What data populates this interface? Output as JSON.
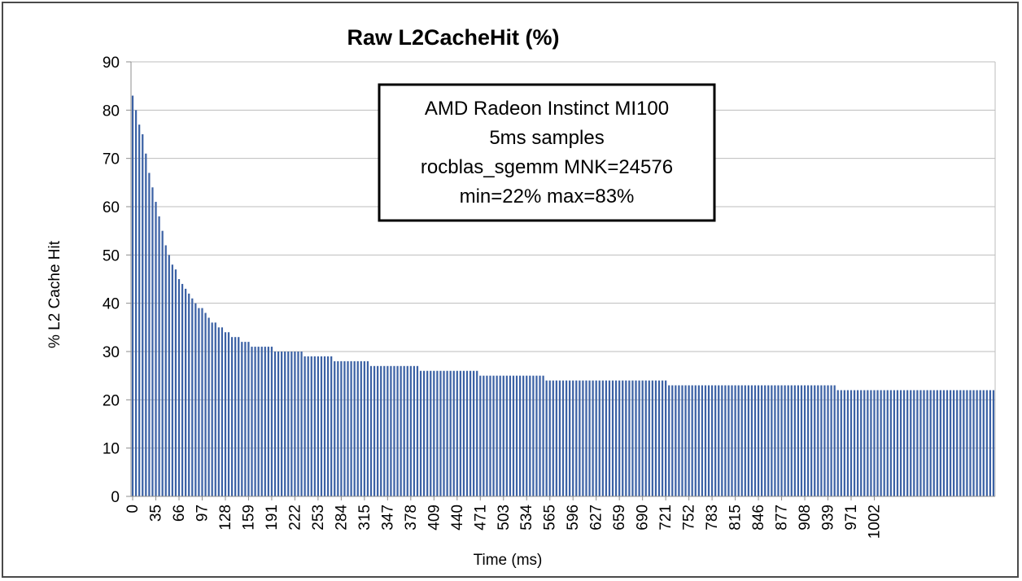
{
  "chart_data": {
    "type": "bar",
    "title": "Raw L2CacheHit (%)",
    "xlabel": "Time (ms)",
    "ylabel": "% L2 Cache Hit",
    "ylim": [
      0,
      90
    ],
    "yticks": [
      0,
      10,
      20,
      30,
      40,
      50,
      60,
      70,
      80,
      90
    ],
    "grid": true,
    "color": "#3c62a5",
    "x_tick_labels": [
      "0",
      "35",
      "66",
      "97",
      "128",
      "159",
      "191",
      "222",
      "253",
      "284",
      "315",
      "347",
      "378",
      "409",
      "440",
      "471",
      "503",
      "534",
      "565",
      "596",
      "627",
      "659",
      "690",
      "721",
      "752",
      "783",
      "815",
      "846",
      "877",
      "908",
      "939",
      "971",
      "1002"
    ],
    "annotation": [
      "AMD Radeon Instinct MI100",
      "5ms samples",
      "rocblas_sgemm MNK=24576",
      "min=22% max=83%"
    ],
    "values": [
      83,
      80,
      77,
      75,
      71,
      67,
      64,
      61,
      58,
      55,
      52,
      50,
      48,
      47,
      45,
      44,
      43,
      42,
      41,
      40,
      39,
      39,
      38,
      37,
      36,
      36,
      35,
      35,
      34,
      34,
      33,
      33,
      33,
      32,
      32,
      32,
      31,
      31,
      31,
      31,
      31,
      31,
      31,
      30,
      30,
      30,
      30,
      30,
      30,
      30,
      30,
      30,
      29,
      29,
      29,
      29,
      29,
      29,
      29,
      29,
      29,
      28,
      28,
      28,
      28,
      28,
      28,
      28,
      28,
      28,
      28,
      28,
      27,
      27,
      27,
      27,
      27,
      27,
      27,
      27,
      27,
      27,
      27,
      27,
      27,
      27,
      27,
      26,
      26,
      26,
      26,
      26,
      26,
      26,
      26,
      26,
      26,
      26,
      26,
      26,
      26,
      26,
      26,
      26,
      26,
      25,
      25,
      25,
      25,
      25,
      25,
      25,
      25,
      25,
      25,
      25,
      25,
      25,
      25,
      25,
      25,
      25,
      25,
      25,
      25,
      24,
      24,
      24,
      24,
      24,
      24,
      24,
      24,
      24,
      24,
      24,
      24,
      24,
      24,
      24,
      24,
      24,
      24,
      24,
      24,
      24,
      24,
      24,
      24,
      24,
      24,
      24,
      24,
      24,
      24,
      24,
      24,
      24,
      24,
      24,
      24,
      24,
      23,
      23,
      23,
      23,
      23,
      23,
      23,
      23,
      23,
      23,
      23,
      23,
      23,
      23,
      23,
      23,
      23,
      23,
      23,
      23,
      23,
      23,
      23,
      23,
      23,
      23,
      23,
      23,
      23,
      23,
      23,
      23,
      23,
      23,
      23,
      23,
      23,
      23,
      23,
      23,
      23,
      23,
      23,
      23,
      23,
      23,
      23,
      23,
      23,
      23,
      23,
      22,
      22,
      22,
      22,
      22,
      22,
      22,
      22,
      22,
      22,
      22,
      22,
      22,
      22,
      22,
      22,
      22,
      22,
      22,
      22,
      22,
      22,
      22,
      22,
      22,
      22,
      22,
      22,
      22,
      22,
      22,
      22,
      22,
      22,
      22,
      22,
      22,
      22,
      22,
      22,
      22,
      22,
      22,
      22,
      22,
      22,
      22,
      22
    ]
  }
}
